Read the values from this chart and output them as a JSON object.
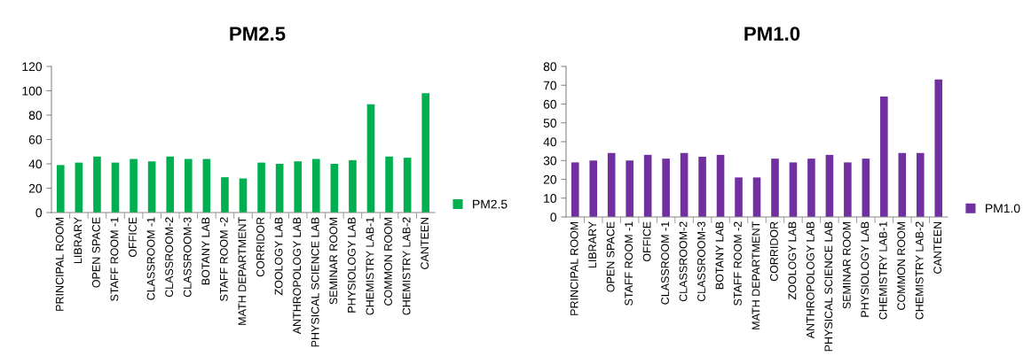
{
  "chart_data": [
    {
      "type": "bar",
      "title": "PM2.5",
      "categories": [
        "PRINCIPAL ROOM",
        "LIBRARY",
        "OPEN SPACE",
        "STAFF ROOM -1",
        "OFFICE",
        "CLASSROOM -1",
        "CLASSROOM-2",
        "CLASSROOM-3",
        "BOTANY LAB",
        "STAFF ROOM -2",
        "MATH DEPARTMENT",
        "CORRIDOR",
        "ZOOLOGY LAB",
        "ANTHROPOLOGY LAB",
        "PHYSICAL SCIENCE LAB",
        "SEMINAR ROOM",
        "PHYSIOLOGY LAB",
        "CHEMISTRY LAB-1",
        "COMMON ROOM",
        "CHEMISTRY LAB-2",
        "CANTEEN"
      ],
      "series": [
        {
          "name": "PM2.5",
          "color": "#00b050",
          "values": [
            39,
            41,
            46,
            41,
            44,
            42,
            46,
            44,
            44,
            29,
            28,
            41,
            40,
            42,
            44,
            40,
            43,
            89,
            46,
            45,
            98
          ]
        }
      ],
      "ylim": [
        0,
        120
      ],
      "yticks": [
        0,
        20,
        40,
        60,
        80,
        100,
        120
      ],
      "grid": false,
      "legend": "right"
    },
    {
      "type": "bar",
      "title": "PM1.0",
      "categories": [
        "PRINCIPAL ROOM",
        "LIBRARY",
        "OPEN SPACE",
        "STAFF ROOM -1",
        "OFFICE",
        "CLASSROOM -1",
        "CLASSROOM-2",
        "CLASSROOM-3",
        "BOTANY LAB",
        "STAFF ROOM -2",
        "MATH DEPARTMENT",
        "CORRIDOR",
        "ZOOLOGY LAB",
        "ANTHROPOLOGY LAB",
        "PHYSICAL SCIENCE LAB",
        "SEMINAR ROOM",
        "PHYSIOLOGY LAB",
        "CHEMISTRY LAB-1",
        "COMMON ROOM",
        "CHEMISTRY LAB-2",
        "CANTEEN"
      ],
      "series": [
        {
          "name": "PM1.0",
          "color": "#7030a0",
          "values": [
            29,
            30,
            34,
            30,
            33,
            31,
            34,
            32,
            33,
            21,
            21,
            31,
            29,
            31,
            33,
            29,
            31,
            64,
            34,
            34,
            73
          ]
        }
      ],
      "ylim": [
        0,
        80
      ],
      "yticks": [
        0,
        10,
        20,
        30,
        40,
        50,
        60,
        70,
        80
      ],
      "grid": false,
      "legend": "right"
    }
  ]
}
